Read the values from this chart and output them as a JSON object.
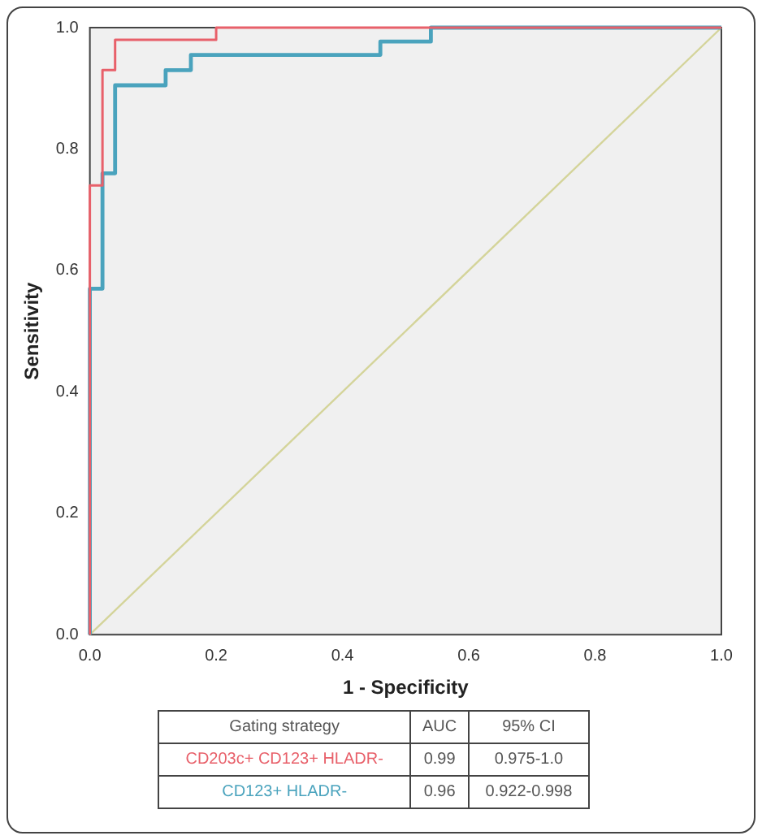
{
  "chart_data": {
    "type": "line",
    "xlabel": "1 - Specificity",
    "ylabel": "Sensitivity",
    "xlim": [
      0,
      1
    ],
    "ylim": [
      0,
      1
    ],
    "xticks": [
      {
        "value": 0,
        "label": "0.0"
      },
      {
        "value": 0.2,
        "label": "0.2"
      },
      {
        "value": 0.4,
        "label": "0.4"
      },
      {
        "value": 0.6,
        "label": "0.6"
      },
      {
        "value": 0.8,
        "label": "0.8"
      },
      {
        "value": 1,
        "label": "1.0"
      }
    ],
    "yticks": [
      {
        "value": 0,
        "label": "0.0"
      },
      {
        "value": 0.2,
        "label": "0.2"
      },
      {
        "value": 0.4,
        "label": "0.4"
      },
      {
        "value": 0.6,
        "label": "0.6"
      },
      {
        "value": 0.8,
        "label": "0.8"
      },
      {
        "value": 1,
        "label": "1.0"
      }
    ],
    "grid": false,
    "legend": false,
    "marker": "none",
    "line_style": "solid",
    "series": [
      {
        "name": "CD203c+ CD123+ HLADR-",
        "color": "#e8606a",
        "x": [
          0,
          0,
          0.02,
          0.02,
          0.04,
          0.04,
          0.2,
          0.2,
          1
        ],
        "values": [
          0,
          0.74,
          0.74,
          0.93,
          0.93,
          0.98,
          0.98,
          1,
          1
        ]
      },
      {
        "name": "CD123+ HLADR-",
        "color": "#4aa3bd",
        "x": [
          0,
          0,
          0.02,
          0.02,
          0.04,
          0.04,
          0.12,
          0.12,
          0.16,
          0.16,
          0.46,
          0.46,
          0.54,
          0.54,
          1
        ],
        "values": [
          0,
          0.57,
          0.57,
          0.76,
          0.76,
          0.905,
          0.905,
          0.93,
          0.93,
          0.955,
          0.955,
          0.977,
          0.977,
          1,
          1
        ]
      },
      {
        "color": "#d4d49a",
        "x": [
          0,
          1
        ],
        "values": [
          0,
          1
        ]
      }
    ],
    "annotations": [
      "Gating strategy",
      "AUC",
      "95% CI",
      "0.99",
      "0.975-1.0",
      "0.96",
      "0.922-0.998"
    ]
  }
}
